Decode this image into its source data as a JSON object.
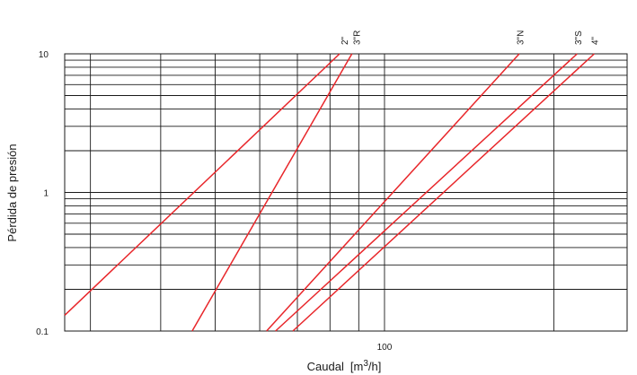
{
  "chart_data": {
    "type": "line",
    "scale": {
      "x": "log",
      "y": "log"
    },
    "xlabel": "Caudal",
    "xlabel_unit_prefix": "[m",
    "xlabel_unit_sup": "3",
    "xlabel_unit_suffix": "/h]",
    "ylabel": "Pérdida de presión",
    "xlim": [
      27,
      270
    ],
    "ylim": [
      0.1,
      10
    ],
    "x_tick_labels": [
      {
        "value": 100,
        "label": "100"
      }
    ],
    "y_tick_labels": [
      {
        "value": 10,
        "label": "10"
      },
      {
        "value": 1,
        "label": "1"
      },
      {
        "value": 0.1,
        "label": "0.1"
      }
    ],
    "grid": true,
    "series": [
      {
        "name": "2\"",
        "points": [
          [
            27,
            0.13
          ],
          [
            83.2,
            10
          ]
        ],
        "label_x": 84.7
      },
      {
        "name": "3\"R",
        "points": [
          [
            45.5,
            0.1
          ],
          [
            87.5,
            10
          ]
        ],
        "label_x": 89.0
      },
      {
        "name": "3\"N",
        "points": [
          [
            61.7,
            0.1
          ],
          [
            173.6,
            10
          ]
        ],
        "label_x": 174.0
      },
      {
        "name": "3\"S",
        "points": [
          [
            64.0,
            0.1
          ],
          [
            220,
            10
          ]
        ],
        "label_x": 220.5
      },
      {
        "name": "4\"",
        "points": [
          [
            68.7,
            0.1
          ],
          [
            236,
            10
          ]
        ],
        "label_x": 236.0
      }
    ]
  }
}
